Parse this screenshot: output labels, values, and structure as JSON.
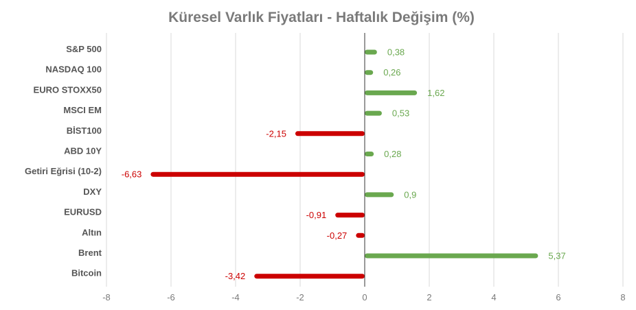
{
  "chart_data": {
    "type": "bar",
    "orientation": "horizontal",
    "title": "Küresel Varlık Fiyatları - Haftalık Değişim (%)",
    "categories": [
      "S&P 500",
      "NASDAQ 100",
      "EURO STOXX50",
      "MSCI EM",
      "BİST100",
      "ABD 10Y",
      "Getiri Eğrisi (10-2)",
      "DXY",
      "EURUSD",
      "Altın",
      "Brent",
      "Bitcoin"
    ],
    "values": [
      0.38,
      0.26,
      1.62,
      0.53,
      -2.15,
      0.28,
      -6.63,
      0.9,
      -0.91,
      -0.27,
      5.37,
      -3.42
    ],
    "value_labels": [
      "0,38",
      "0,26",
      "1,62",
      "0,53",
      "-2,15",
      "0,28",
      "-6,63",
      "0,9",
      "-0,91",
      "-0,27",
      "5,37",
      "-3,42"
    ],
    "xlim": [
      -8,
      8
    ],
    "x_ticks": [
      -8,
      -6,
      -4,
      -2,
      0,
      2,
      4,
      6,
      8
    ],
    "x_tick_labels": [
      "-8",
      "-6",
      "-4",
      "-2",
      "0",
      "2",
      "4",
      "6",
      "8"
    ],
    "grid": "vertical",
    "legend": "none",
    "colors": {
      "positive": "#6aa84f",
      "negative": "#cc0000",
      "grid": "#d9d9d9",
      "axis": "#333333"
    }
  }
}
